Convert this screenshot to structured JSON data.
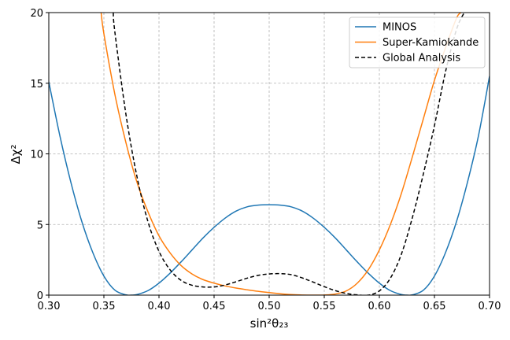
{
  "chart_data": {
    "type": "line",
    "xlabel": "sin²θ₂₃",
    "ylabel": "Δχ²",
    "xlim": [
      0.3,
      0.7
    ],
    "ylim": [
      0,
      20
    ],
    "xticks": [
      "0.30",
      "0.35",
      "0.40",
      "0.45",
      "0.50",
      "0.55",
      "0.60",
      "0.65",
      "0.70"
    ],
    "yticks": [
      "0",
      "5",
      "10",
      "15",
      "20"
    ],
    "grid": true,
    "legend_position": "top-right",
    "series": [
      {
        "name": "MINOS",
        "color": "#1f77b4",
        "style": "solid",
        "x": [
          0.3,
          0.31,
          0.32,
          0.33,
          0.34,
          0.35,
          0.36,
          0.37,
          0.375,
          0.38,
          0.39,
          0.4,
          0.41,
          0.42,
          0.43,
          0.44,
          0.45,
          0.46,
          0.47,
          0.48,
          0.49,
          0.5,
          0.51,
          0.52,
          0.53,
          0.54,
          0.55,
          0.56,
          0.57,
          0.58,
          0.59,
          0.6,
          0.61,
          0.62,
          0.625,
          0.63,
          0.64,
          0.65,
          0.66,
          0.67,
          0.68,
          0.69,
          0.7
        ],
        "y": [
          15.1,
          11.3,
          8.0,
          5.2,
          3.0,
          1.35,
          0.35,
          0.02,
          0.0,
          0.04,
          0.32,
          0.85,
          1.55,
          2.35,
          3.2,
          4.05,
          4.8,
          5.45,
          5.95,
          6.25,
          6.37,
          6.4,
          6.37,
          6.25,
          5.95,
          5.45,
          4.8,
          4.05,
          3.2,
          2.35,
          1.55,
          0.85,
          0.32,
          0.04,
          0.0,
          0.02,
          0.35,
          1.35,
          3.0,
          5.2,
          8.0,
          11.3,
          15.5
        ]
      },
      {
        "name": "Super-Kamiokande",
        "color": "#ff7f0e",
        "style": "solid",
        "x": [
          0.3475,
          0.35,
          0.36,
          0.37,
          0.38,
          0.39,
          0.4,
          0.41,
          0.42,
          0.43,
          0.44,
          0.45,
          0.46,
          0.47,
          0.48,
          0.49,
          0.5,
          0.51,
          0.52,
          0.53,
          0.54,
          0.55,
          0.56,
          0.57,
          0.58,
          0.59,
          0.6,
          0.61,
          0.62,
          0.63,
          0.64,
          0.65,
          0.66,
          0.67,
          0.674
        ],
        "y": [
          20.0,
          18.5,
          14.2,
          10.8,
          8.0,
          5.9,
          4.2,
          3.0,
          2.1,
          1.5,
          1.1,
          0.85,
          0.65,
          0.5,
          0.38,
          0.27,
          0.18,
          0.1,
          0.04,
          0.01,
          0.0,
          0.01,
          0.08,
          0.3,
          0.85,
          1.8,
          3.2,
          5.0,
          7.2,
          9.8,
          12.5,
          15.2,
          17.5,
          19.6,
          20.0
        ]
      },
      {
        "name": "Global Analysis",
        "color": "#000000",
        "style": "dashed",
        "x": [
          0.3585,
          0.36,
          0.37,
          0.38,
          0.39,
          0.4,
          0.41,
          0.42,
          0.43,
          0.44,
          0.45,
          0.46,
          0.47,
          0.48,
          0.49,
          0.5,
          0.51,
          0.52,
          0.53,
          0.54,
          0.55,
          0.56,
          0.57,
          0.58,
          0.59,
          0.6,
          0.61,
          0.62,
          0.63,
          0.64,
          0.65,
          0.66,
          0.67,
          0.677
        ],
        "y": [
          20.0,
          18.6,
          12.8,
          8.4,
          5.2,
          3.1,
          1.8,
          1.05,
          0.7,
          0.58,
          0.58,
          0.72,
          0.95,
          1.2,
          1.4,
          1.5,
          1.52,
          1.45,
          1.22,
          0.92,
          0.6,
          0.32,
          0.12,
          0.02,
          0.0,
          0.3,
          1.2,
          2.9,
          5.5,
          8.6,
          12.0,
          15.8,
          18.8,
          20.0
        ]
      }
    ]
  }
}
